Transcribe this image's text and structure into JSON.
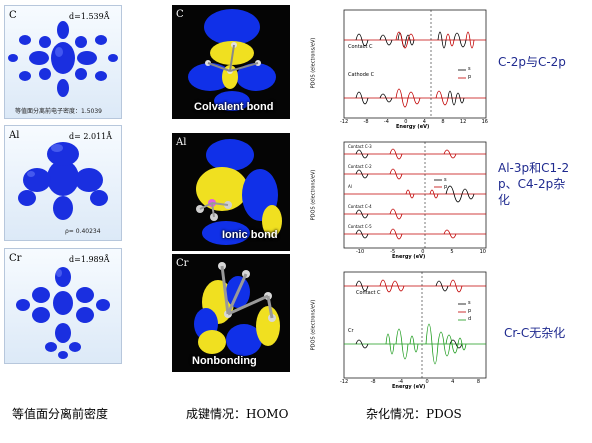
{
  "density": {
    "panels": [
      {
        "element": "C",
        "d": "d=1.539Å",
        "note": "等值面分离前电子密度：1.5039"
      },
      {
        "element": "Al",
        "d": "d= 2.011Å",
        "note": "ρ= 0.40234"
      },
      {
        "element": "Cr",
        "d": "d=1.989Å",
        "note": ""
      }
    ]
  },
  "homo": {
    "panels": [
      {
        "element": "C",
        "bond": "Colvalent bond"
      },
      {
        "element": "Al",
        "bond": "Ionic bond"
      },
      {
        "element": "Cr",
        "bond": "Nonbonding"
      }
    ]
  },
  "pdos": {
    "panels": [
      {
        "ylabel": "PDOS (electrons/eV)",
        "xlabel": "Energy (eV)",
        "rows": [
          "Contact C",
          "Cathode C"
        ],
        "ticks": [
          "-12",
          "-8",
          "-4",
          "0",
          "4",
          "8",
          "12",
          "16"
        ],
        "legend": [
          "s",
          "p"
        ]
      },
      {
        "ylabel": "PDOS (electrons/eV)",
        "xlabel": "Energy (eV)",
        "rows": [
          "Contact C-3",
          "Contact C-2",
          "Al",
          "Contact C-4",
          "Contact C-5"
        ],
        "ticks": [
          "-10",
          "-5",
          "0",
          "5",
          "10"
        ],
        "legend": [
          "s",
          "p"
        ]
      },
      {
        "ylabel": "PDOS (electrons/eV)",
        "xlabel": "Energy (eV)",
        "rows": [
          "Contact C",
          "Cr"
        ],
        "ticks": [
          "-12",
          "-8",
          "-4",
          "0",
          "4",
          "8"
        ],
        "legend": [
          "s",
          "p",
          "d"
        ]
      }
    ]
  },
  "side_labels": {
    "c": "C-2p与C-2p",
    "al_line1": "Al-3p和C1-2",
    "al_line2": "p、C4-2p杂",
    "al_line3": "化",
    "cr": "Cr-C无杂化"
  },
  "captions": {
    "density": "等值面分离前密度",
    "homo": "成键情况：HOMO",
    "pdos": "杂化情况：PDOS"
  },
  "colors": {
    "blob": "#1a2fe0",
    "homo_blue": "#1030e8",
    "homo_yellow": "#f0e020",
    "side_text": "#1f2a8f"
  }
}
